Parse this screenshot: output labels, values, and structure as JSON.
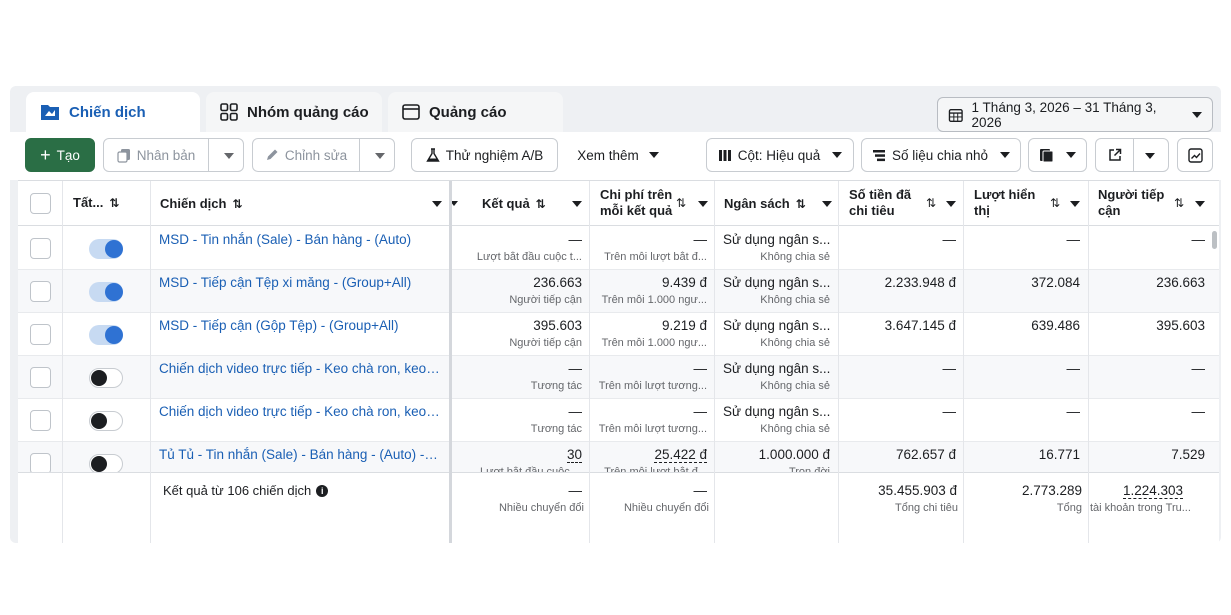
{
  "tabs": [
    {
      "label": "Chiến dịch",
      "icon": "campaign-folder-icon"
    },
    {
      "label": "Nhóm quảng cáo",
      "icon": "adset-grid-icon"
    },
    {
      "label": "Quảng cáo",
      "icon": "ad-window-icon"
    }
  ],
  "date_range": "1 Tháng 3, 2026 – 31 Tháng 3, 2026",
  "toolbar": {
    "create": "Tạo",
    "duplicate": "Nhân bản",
    "edit": "Chỉnh sửa",
    "ab_test": "Thử nghiệm A/B",
    "more": "Xem thêm",
    "columns": "Cột: Hiệu quả",
    "breakdown": "Số liệu chia nhỏ"
  },
  "headers": {
    "all": "Tất...",
    "campaign": "Chiến dịch",
    "results": "Kết quả",
    "cost_line1": "Chi phí trên",
    "cost_line2": "mỗi kết quả",
    "budget": "Ngân sách",
    "spent_line1": "Số tiền đã",
    "spent_line2": "chi tiêu",
    "impr_line1": "Lượt hiển",
    "impr_line2": "thị",
    "reach_line1": "Người tiếp",
    "reach_line2": "cận"
  },
  "rows": [
    {
      "on": true,
      "name": "MSD - Tin nhắn (Sale) - Bán hàng - (Auto)",
      "results": "—",
      "results_sub": "Lượt bắt đầu cuộc t...",
      "cost": "—",
      "cost_sub": "Trên mỗi lượt bắt đ...",
      "budget": "Sử dụng ngân s...",
      "budget_sub": "Không chia sẻ",
      "spent": "—",
      "impr": "—",
      "reach": "—"
    },
    {
      "on": true,
      "name": "MSD - Tiếp cận Tệp xi măng - (Group+All)",
      "results": "236.663",
      "results_sub": "Người tiếp cận",
      "cost": "9.439 đ",
      "cost_sub": "Trên mỗi 1.000 ngư...",
      "budget": "Sử dụng ngân s...",
      "budget_sub": "Không chia sẻ",
      "spent": "2.233.948 đ",
      "impr": "372.084",
      "reach": "236.663"
    },
    {
      "on": true,
      "name": "MSD - Tiếp cận (Gộp Tệp) - (Group+All)",
      "results": "395.603",
      "results_sub": "Người tiếp cận",
      "cost": "9.219 đ",
      "cost_sub": "Trên mỗi 1.000 ngư...",
      "budget": "Sử dụng ngân s...",
      "budget_sub": "Không chia sẻ",
      "spent": "3.647.145 đ",
      "impr": "639.486",
      "reach": "395.603"
    },
    {
      "on": false,
      "name": "Chiến dịch video trực tiếp - Keo chà ron, keo d...",
      "results": "—",
      "results_sub": "Tương tác",
      "cost": "—",
      "cost_sub": "Trên mỗi lượt tương...",
      "budget": "Sử dụng ngân s...",
      "budget_sub": "Không chia sẻ",
      "spent": "—",
      "impr": "—",
      "reach": "—"
    },
    {
      "on": false,
      "name": "Chiến dịch video trực tiếp - Keo chà ron, keo d...",
      "results": "—",
      "results_sub": "Tương tác",
      "cost": "—",
      "cost_sub": "Trên mỗi lượt tương...",
      "budget": "Sử dụng ngân s...",
      "budget_sub": "Không chia sẻ",
      "spent": "—",
      "impr": "—",
      "reach": "—"
    },
    {
      "on": false,
      "name": "Tủ Tủ - Tin nhắn (Sale) - Bán hàng - (Auto) - (...",
      "results": "30",
      "results_sub": "Lượt bắt đầu cuộc ...",
      "cost": "25.422 đ",
      "cost_sub": "Trên mỗi lượt bắt đ...",
      "budget": "1.000.000 đ",
      "budget_sub": "Trọn đời",
      "spent": "762.657 đ",
      "impr": "16.771",
      "reach": "7.529"
    }
  ],
  "footer": {
    "label": "Kết quả từ 106 chiến dịch",
    "results": "—",
    "results_sub": "Nhiều chuyển đổi",
    "cost": "—",
    "cost_sub": "Nhiều chuyển đổi",
    "spent": "35.455.903 đ",
    "spent_sub": "Tổng chi tiêu",
    "impr": "2.773.289",
    "impr_sub": "Tổng",
    "reach": "1.224.303",
    "reach_sub": "tài khoản trong Tru..."
  },
  "colors": {
    "accent": "#1a5fb4",
    "create_button": "#2a6e45",
    "toggle_on": "#2f72d3"
  }
}
